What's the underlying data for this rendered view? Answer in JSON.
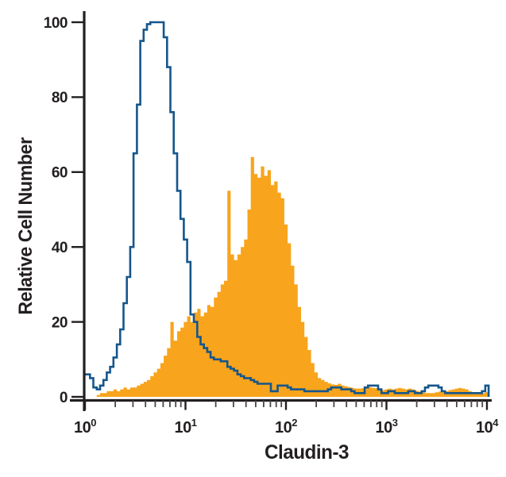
{
  "chart_data": {
    "type": "area",
    "subtype": "flow-cytometry-overlay-histogram",
    "title": "",
    "xlabel": "Claudin-3",
    "ylabel": "Relative Cell Number",
    "x_scale": "log10",
    "xlim": [
      1,
      10000
    ],
    "ylim": [
      0,
      100
    ],
    "y_ticks": [
      0,
      20,
      40,
      60,
      80,
      100
    ],
    "x_tick_base": "10",
    "x_tick_exponents": [
      0,
      1,
      2,
      3,
      4
    ],
    "x_minor_tick_multiples": [
      2,
      3,
      4,
      5,
      6,
      7,
      8,
      9
    ],
    "grid": false,
    "legend": "none",
    "bins_per_decade": 30,
    "series": [
      {
        "name": "open-histogram-control",
        "style": "open-outline",
        "color": "#15568B",
        "values": [
          6,
          6,
          5,
          2.5,
          2,
          3,
          4.5,
          6.5,
          8,
          10.5,
          14,
          18,
          25,
          32,
          40,
          65,
          78,
          95,
          98,
          99.5,
          100,
          100,
          100,
          100,
          96,
          88,
          76,
          65,
          55,
          47.5,
          42,
          36,
          22,
          20,
          16,
          14,
          13,
          12,
          10.5,
          10,
          10,
          9.5,
          9.5,
          8,
          7.5,
          7,
          6,
          5.5,
          5,
          5,
          4.5,
          4,
          3.5,
          3.5,
          3.5,
          3.5,
          1.5,
          1.5,
          3,
          3,
          3,
          2.5,
          2,
          2,
          2,
          2,
          1.5,
          1.5,
          1.5,
          1.5,
          1.5,
          1.5,
          1.5,
          2,
          2.5,
          2.5,
          2.5,
          2,
          2,
          2,
          1.5,
          1,
          1,
          1,
          2.5,
          3,
          3,
          3,
          2,
          1,
          1,
          1.5,
          1.5,
          1,
          1,
          1,
          1,
          1.5,
          1.5,
          1,
          1,
          1.5,
          2.5,
          3,
          3,
          3,
          2.5,
          1.5,
          1,
          1,
          1,
          1,
          1,
          1,
          1,
          1,
          1,
          1,
          1,
          1.5,
          3
        ]
      },
      {
        "name": "filled-histogram-stained",
        "style": "filled",
        "color": "#F8A41C",
        "values": [
          0,
          0,
          0,
          0,
          0.5,
          1,
          1,
          1.5,
          1.5,
          2,
          1.5,
          2,
          2.5,
          2,
          2.5,
          2.5,
          3,
          3.5,
          4,
          4.5,
          5.5,
          6.5,
          7.5,
          9,
          11,
          13,
          20,
          15,
          17.5,
          18.5,
          20,
          21.5,
          20,
          22.5,
          23.5,
          21.5,
          22.5,
          24.5,
          24,
          26.5,
          28,
          30,
          31,
          55,
          38,
          36.5,
          38,
          40,
          42,
          50,
          64,
          59.5,
          58.5,
          61.5,
          59,
          60.5,
          56.5,
          57.5,
          54.5,
          53,
          46,
          41,
          35,
          30,
          24,
          20,
          16,
          12.5,
          9,
          6.5,
          5,
          4.5,
          4,
          3.6,
          3.3,
          3.2,
          3.5,
          3,
          2.8,
          2.6,
          2.4,
          2.2,
          2.2,
          2.3,
          2.5,
          2.6,
          2.4,
          2.3,
          2.2,
          1.8,
          2,
          2.2,
          2,
          2.2,
          2.4,
          2.2,
          2,
          2.2,
          2,
          1.6,
          1.4,
          1.2,
          1,
          1,
          1,
          1.2,
          1.4,
          1.2,
          1.5,
          1.8,
          2,
          2.2,
          2.4,
          2.2,
          2,
          1.5,
          1.2,
          1,
          1.2,
          1,
          1.2
        ]
      }
    ]
  },
  "colors": {
    "background": "#FFFFFF",
    "axis": "#231F20",
    "text": "#231F20",
    "open_histogram": "#15568B",
    "filled_histogram": "#F8A41C"
  }
}
